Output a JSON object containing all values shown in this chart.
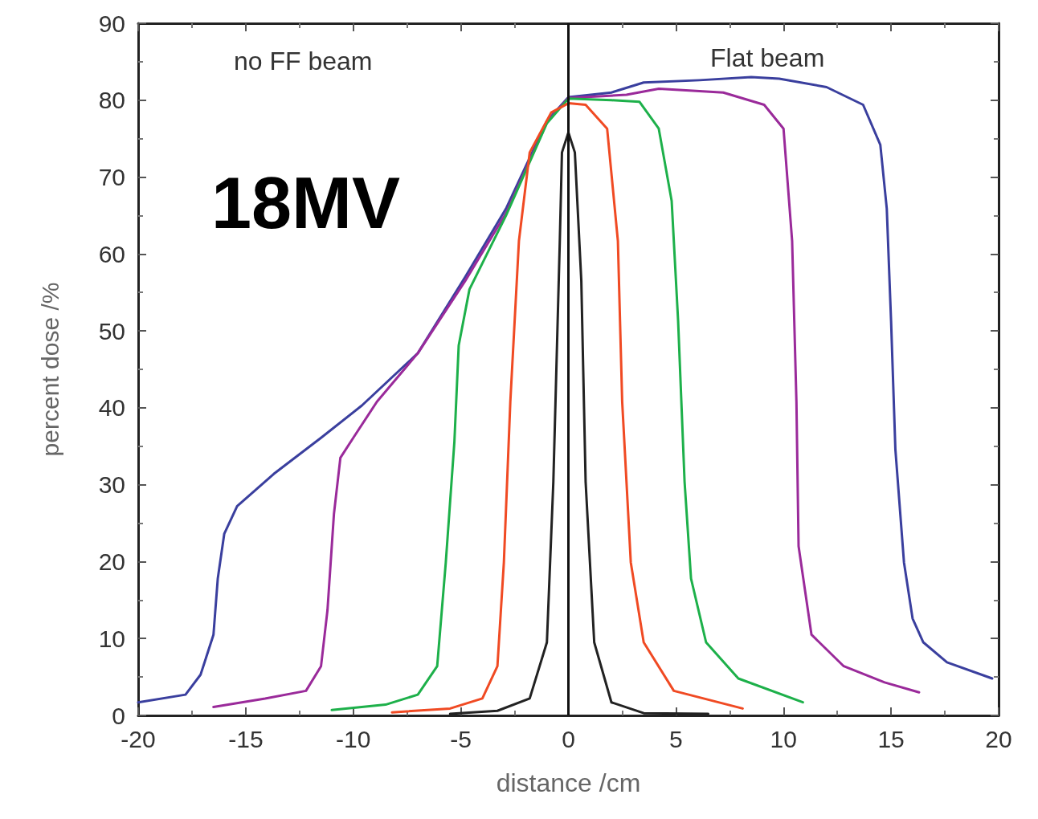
{
  "chart_data": {
    "type": "line",
    "xlabel": "distance /cm",
    "ylabel": "percent dose /%",
    "annotations": [
      "no FF beam",
      "Flat beam",
      "18MV"
    ],
    "xlim": [
      -20,
      20
    ],
    "xticks": [
      -20,
      -15,
      -10,
      -5,
      0,
      5,
      10,
      15,
      20
    ],
    "ylim": [
      0,
      90
    ],
    "yticks": [
      0,
      10,
      20,
      30,
      40,
      50,
      60,
      70,
      80,
      90
    ],
    "grid": false,
    "marker": "none",
    "line_style": "solid",
    "ref_lines": [
      {
        "axis": "x",
        "value": 0,
        "color": "#111111"
      }
    ],
    "series": [
      {
        "color": "#3a3f9e",
        "x": [
          -20,
          -17.8,
          -17.1,
          -16.5,
          -16.3,
          -16,
          -15.4,
          -13.7,
          -11.5,
          -9.6,
          -7,
          -4.8,
          -2.9,
          -1,
          0,
          2,
          3.5,
          6.1,
          8.5,
          9.8,
          12,
          13.7,
          14.5,
          14.8,
          15,
          15.2,
          15.6,
          16,
          16.5,
          17.6,
          19.7
        ],
        "values": [
          1.7,
          2.7,
          5.3,
          10.5,
          17.8,
          23.6,
          27.2,
          31.4,
          36.1,
          40.3,
          47.1,
          57,
          65.9,
          77.3,
          80.4,
          81,
          82.3,
          82.6,
          83,
          82.8,
          81.7,
          79.4,
          74.2,
          65.9,
          51.3,
          34.6,
          19.9,
          12.6,
          9.5,
          6.9,
          4.8
        ]
      },
      {
        "color": "#9a2a9a",
        "x": [
          -16.5,
          -14.1,
          -12.2,
          -11.5,
          -11.2,
          -10.9,
          -10.6,
          -10,
          -8.9,
          -7,
          -4.8,
          -2.9,
          -1,
          0,
          2.7,
          4.2,
          7.2,
          9.1,
          10,
          10.4,
          10.6,
          10.7,
          11.3,
          12.8,
          14.7,
          16.3
        ],
        "values": [
          1.1,
          2.2,
          3.2,
          6.4,
          13.7,
          26.2,
          33.5,
          36.1,
          40.8,
          47.1,
          56.5,
          65.3,
          77.1,
          80.3,
          80.7,
          81.5,
          81,
          79.4,
          76.3,
          61.7,
          40.8,
          22,
          10.5,
          6.4,
          4.3,
          3
        ]
      },
      {
        "color": "#1db04a",
        "x": [
          -11,
          -8.5,
          -7,
          -6.1,
          -5.7,
          -5.3,
          -5.1,
          -4.6,
          -2.9,
          -1,
          0,
          2,
          3.3,
          4.2,
          4.8,
          5.1,
          5.4,
          5.7,
          6.4,
          7.9,
          10.9
        ],
        "values": [
          0.7,
          1.4,
          2.7,
          6.4,
          19.9,
          35.6,
          48.1,
          55.4,
          65,
          77,
          80.2,
          80,
          79.8,
          76.3,
          66.9,
          51.3,
          30.4,
          17.8,
          9.5,
          4.8,
          1.7
        ]
      },
      {
        "color": "#f04a23",
        "x": [
          -8.2,
          -5.5,
          -4,
          -3.3,
          -3,
          -2.7,
          -2.3,
          -1.8,
          -0.8,
          0,
          0.8,
          1.8,
          2.3,
          2.5,
          2.9,
          3.5,
          4.9,
          8.1
        ],
        "values": [
          0.4,
          0.9,
          2.2,
          6.4,
          19.9,
          40.8,
          61.7,
          73.2,
          78.4,
          79.6,
          79.4,
          76.3,
          61.7,
          40.8,
          19.9,
          9.5,
          3.2,
          0.9
        ]
      },
      {
        "color": "#222222",
        "x": [
          -5.5,
          -3.3,
          -1.8,
          -1,
          -0.7,
          -0.4,
          -0.3,
          0,
          0.3,
          0.6,
          0.8,
          1.2,
          2,
          3.5,
          6.5
        ],
        "values": [
          0.2,
          0.6,
          2.2,
          9.5,
          30.4,
          61.7,
          73.2,
          75.8,
          73.2,
          56.5,
          30.4,
          9.5,
          1.7,
          0.3,
          0.2
        ]
      }
    ]
  }
}
